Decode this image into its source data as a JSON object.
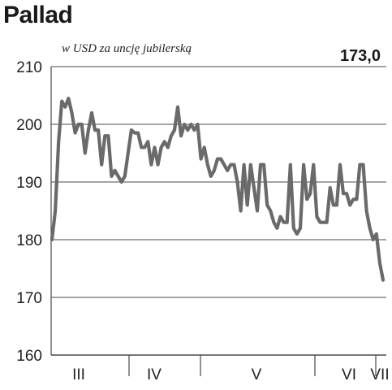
{
  "header": {
    "title": "Pallad",
    "unit_label": "w USD za uncję jubilerską",
    "last_value": "173,0"
  },
  "colors": {
    "line": "#6a6a6a",
    "grid": "#4a4a4a",
    "text": "#222222"
  },
  "chart_data": {
    "type": "line",
    "title": "Pallad",
    "ylabel": "w USD za uncję jubilerską",
    "ylim": [
      160,
      210
    ],
    "yticks": [
      "210",
      "200",
      "190",
      "180",
      "170",
      "160"
    ],
    "ytick_values": [
      210,
      200,
      190,
      180,
      170,
      160
    ],
    "month_labels": [
      "III",
      "IV",
      "V",
      "VI",
      "VII"
    ],
    "grid": true,
    "series": [
      {
        "values": [
          180,
          185,
          197,
          204,
          203,
          204.5,
          202,
          198.5,
          200,
          200,
          195,
          199,
          202,
          199,
          199,
          193,
          198,
          198,
          191,
          192,
          191,
          190,
          191,
          195,
          199,
          198.5,
          198.5,
          196,
          196,
          197,
          193,
          196,
          193,
          196,
          197,
          196,
          198,
          199,
          203,
          198,
          200,
          199,
          200,
          199,
          200,
          194,
          196,
          193,
          191,
          192,
          194,
          194,
          193,
          192,
          193,
          193,
          190,
          185,
          193,
          186,
          193,
          189,
          185,
          193,
          193,
          186,
          185,
          183,
          182,
          184,
          183,
          183,
          193,
          182,
          181,
          182,
          193,
          187,
          188,
          193,
          184,
          183,
          183,
          183,
          189,
          186,
          186,
          193,
          188,
          188,
          186,
          187,
          187,
          193,
          193,
          185,
          182,
          180,
          181,
          176,
          173
        ]
      }
    ]
  }
}
